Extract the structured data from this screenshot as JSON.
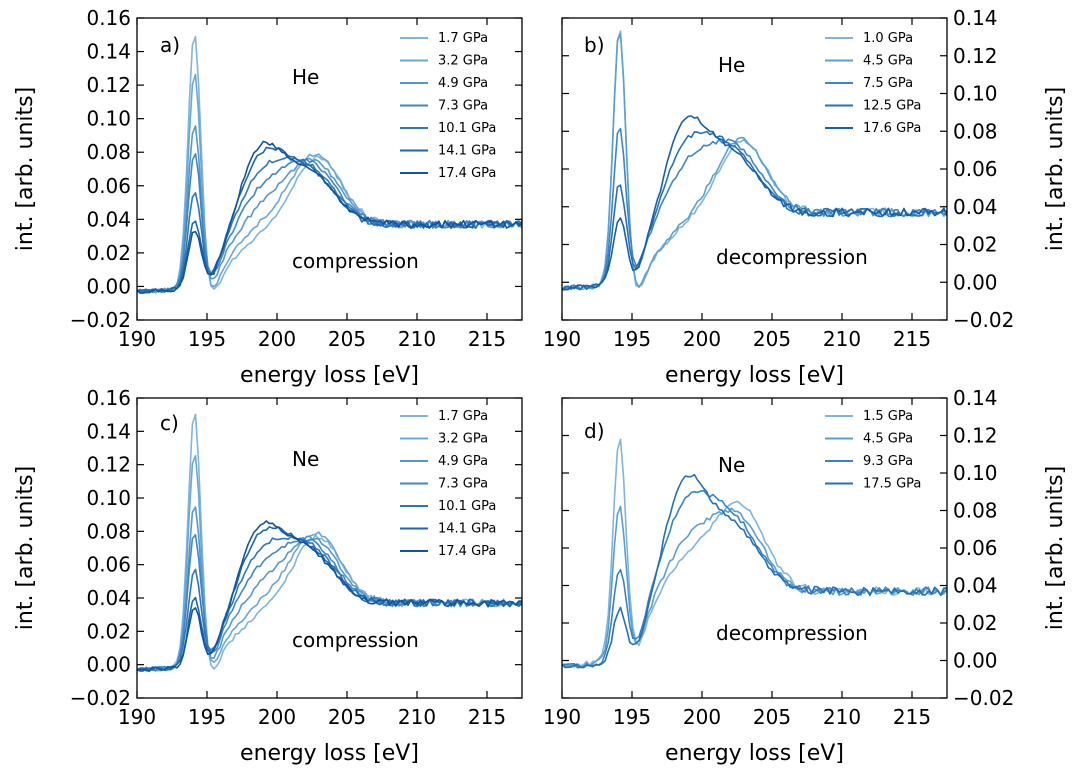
{
  "chart_data": [
    {
      "panel_label": "a)",
      "type": "line",
      "gas": "He",
      "process": "compression",
      "xlabel": "energy loss [eV]",
      "ylabel": "int. [arb. units]",
      "xlim": [
        190,
        217.5
      ],
      "ylim": [
        -0.02,
        0.16
      ],
      "xticks": [
        190,
        195,
        200,
        205,
        210,
        215
      ],
      "yticks": [
        "−0.02",
        "0.00",
        "0.02",
        "0.04",
        "0.06",
        "0.08",
        "0.10",
        "0.12",
        "0.14",
        "0.16"
      ],
      "ytick_values": [
        -0.02,
        0.0,
        0.02,
        0.04,
        0.06,
        0.08,
        0.1,
        0.12,
        0.14,
        0.16
      ],
      "y_axis_side": "left",
      "legend_position": "top-right",
      "series": [
        {
          "name": "1.7 GPa",
          "color": "#7fb5dc",
          "peak1": 0.148,
          "peak2": 0.039,
          "peak3": 0.08
        },
        {
          "name": "3.2 GPa",
          "color": "#6aa7d5",
          "peak1": 0.122,
          "peak2": 0.046,
          "peak3": 0.078
        },
        {
          "name": "4.9 GPa",
          "color": "#5598cc",
          "peak1": 0.09,
          "peak2": 0.056,
          "peak3": 0.07
        },
        {
          "name": "7.3 GPa",
          "color": "#3f88c4",
          "peak1": 0.073,
          "peak2": 0.066,
          "peak3": 0.064
        },
        {
          "name": "10.1 GPa",
          "color": "#2d77b9",
          "peak1": 0.05,
          "peak2": 0.075,
          "peak3": 0.06
        },
        {
          "name": "14.1 GPa",
          "color": "#1e66ad",
          "peak1": 0.034,
          "peak2": 0.084,
          "peak3": 0.057
        },
        {
          "name": "17.4 GPa",
          "color": "#10559f",
          "peak1": 0.029,
          "peak2": 0.088,
          "peak3": 0.055
        }
      ]
    },
    {
      "panel_label": "b)",
      "type": "line",
      "gas": "He",
      "process": "decompression",
      "xlabel": "energy loss [eV]",
      "ylabel": "int. [arb. units]",
      "xlim": [
        190,
        217.5
      ],
      "ylim": [
        -0.02,
        0.14
      ],
      "xticks": [
        190,
        195,
        200,
        205,
        210,
        215
      ],
      "yticks": [
        "−0.02",
        "0.00",
        "0.02",
        "0.04",
        "0.06",
        "0.08",
        "0.10",
        "0.12",
        "0.14"
      ],
      "ytick_values": [
        -0.02,
        0.0,
        0.02,
        0.04,
        0.06,
        0.08,
        0.1,
        0.12,
        0.14
      ],
      "y_axis_side": "right",
      "legend_position": "top-right",
      "series": [
        {
          "name": "1.0 GPa",
          "color": "#7fb5dc",
          "peak1": 0.13,
          "peak2": 0.038,
          "peak3": 0.078
        },
        {
          "name": "4.5 GPa",
          "color": "#5da0d0",
          "peak1": 0.129,
          "peak2": 0.04,
          "peak3": 0.076
        },
        {
          "name": "7.5 GPa",
          "color": "#3d86c3",
          "peak1": 0.075,
          "peak2": 0.07,
          "peak3": 0.062
        },
        {
          "name": "12.5 GPa",
          "color": "#2670b5",
          "peak1": 0.046,
          "peak2": 0.08,
          "peak3": 0.058
        },
        {
          "name": "17.6 GPa",
          "color": "#1660a8",
          "peak1": 0.03,
          "peak2": 0.09,
          "peak3": 0.055
        }
      ]
    },
    {
      "panel_label": "c)",
      "type": "line",
      "gas": "Ne",
      "process": "compression",
      "xlabel": "energy loss [eV]",
      "ylabel": "int. [arb. units]",
      "xlim": [
        190,
        217.5
      ],
      "ylim": [
        -0.02,
        0.16
      ],
      "xticks": [
        190,
        195,
        200,
        205,
        210,
        215
      ],
      "yticks": [
        "−0.02",
        "0.00",
        "0.02",
        "0.04",
        "0.06",
        "0.08",
        "0.10",
        "0.12",
        "0.14",
        "0.16"
      ],
      "ytick_values": [
        -0.02,
        0.0,
        0.02,
        0.04,
        0.06,
        0.08,
        0.1,
        0.12,
        0.14,
        0.16
      ],
      "y_axis_side": "left",
      "legend_position": "top-right",
      "series": [
        {
          "name": "1.7 GPa",
          "color": "#7fb5dc",
          "peak1": 0.148,
          "peak2": 0.039,
          "peak3": 0.08
        },
        {
          "name": "3.2 GPa",
          "color": "#6aa7d5",
          "peak1": 0.122,
          "peak2": 0.046,
          "peak3": 0.078
        },
        {
          "name": "4.9 GPa",
          "color": "#5598cc",
          "peak1": 0.09,
          "peak2": 0.056,
          "peak3": 0.07
        },
        {
          "name": "7.3 GPa",
          "color": "#3f88c4",
          "peak1": 0.073,
          "peak2": 0.066,
          "peak3": 0.064
        },
        {
          "name": "10.1 GPa",
          "color": "#2d77b9",
          "peak1": 0.05,
          "peak2": 0.075,
          "peak3": 0.06
        },
        {
          "name": "14.1 GPa",
          "color": "#1e66ad",
          "peak1": 0.034,
          "peak2": 0.084,
          "peak3": 0.057
        },
        {
          "name": "17.4 GPa",
          "color": "#10559f",
          "peak1": 0.029,
          "peak2": 0.088,
          "peak3": 0.055
        }
      ]
    },
    {
      "panel_label": "d)",
      "type": "line",
      "gas": "Ne",
      "process": "decompression",
      "xlabel": "energy loss [eV]",
      "ylabel": "int. [arb. units]",
      "xlim": [
        190,
        217.5
      ],
      "ylim": [
        -0.02,
        0.14
      ],
      "xticks": [
        190,
        195,
        200,
        205,
        210,
        215
      ],
      "yticks": [
        "−0.02",
        "0.00",
        "0.02",
        "0.04",
        "0.06",
        "0.08",
        "0.10",
        "0.12",
        "0.14"
      ],
      "ytick_values": [
        -0.02,
        0.0,
        0.02,
        0.04,
        0.06,
        0.08,
        0.1,
        0.12,
        0.14
      ],
      "y_axis_side": "right",
      "legend_position": "top-right",
      "series": [
        {
          "name": "1.5 GPa",
          "color": "#7fb5dc",
          "peak1": 0.11,
          "peak2": 0.065,
          "peak3": 0.077
        },
        {
          "name": "4.5 GPa",
          "color": "#5a9ecf",
          "peak1": 0.075,
          "peak2": 0.072,
          "peak3": 0.068
        },
        {
          "name": "9.3 GPa",
          "color": "#3a83c1",
          "peak1": 0.042,
          "peak2": 0.092,
          "peak3": 0.062
        },
        {
          "name": "17.5 GPa",
          "color": "#2570b4",
          "peak1": 0.022,
          "peak2": 0.102,
          "peak3": 0.058
        }
      ]
    }
  ]
}
